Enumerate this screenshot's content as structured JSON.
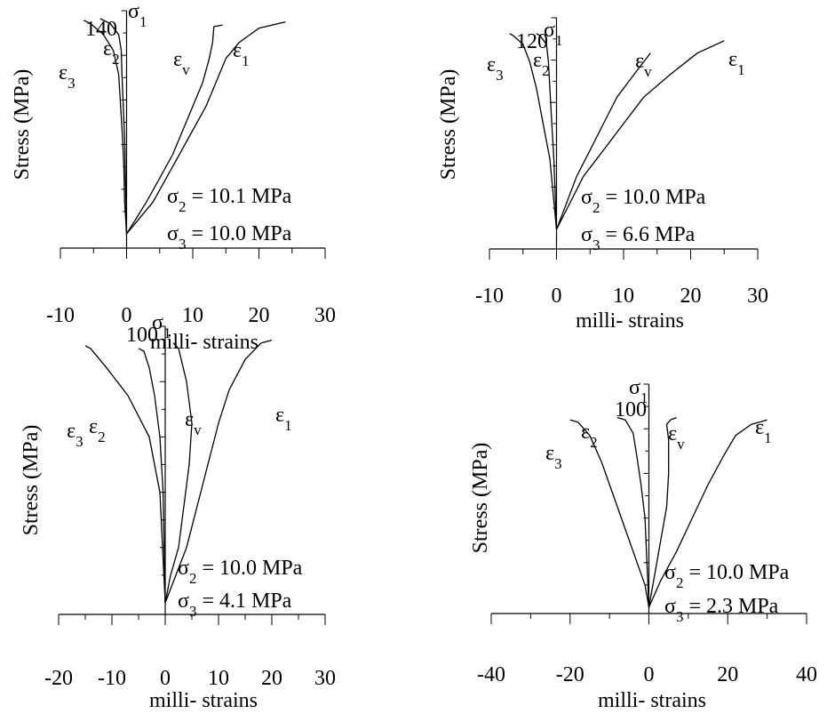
{
  "chart_data": [
    {
      "type": "line",
      "xlabel": "milli- strains",
      "ylabel": "Stress (MPa)",
      "xlim": [
        -10,
        30
      ],
      "ylim": [
        0,
        140
      ],
      "x_ticks": [
        "-10",
        "0",
        "10",
        "20",
        "30"
      ],
      "y_max_label": "140",
      "y_axis_symbol": "σ",
      "y_axis_symbol_sub": "1",
      "params": [
        {
          "symbol": "σ",
          "sub": "2",
          "text": " = 10.1 MPa"
        },
        {
          "symbol": "σ",
          "sub": "3",
          "text": " = 10.0 MPa"
        }
      ],
      "series": [
        {
          "symbol": "ε",
          "sub": "3",
          "points": [
            [
              0,
              0
            ],
            [
              -0.3,
              20
            ],
            [
              -0.4,
              40
            ],
            [
              -0.6,
              60
            ],
            [
              -0.9,
              80
            ],
            [
              -1.2,
              100
            ],
            [
              -2,
              115
            ],
            [
              -3.5,
              125
            ],
            [
              -5.5,
              132
            ],
            [
              -6.5,
              134
            ]
          ]
        },
        {
          "symbol": "ε",
          "sub": "2",
          "points": [
            [
              0,
              0
            ],
            [
              -0.1,
              20
            ],
            [
              -0.2,
              40
            ],
            [
              -0.3,
              60
            ],
            [
              -0.5,
              80
            ],
            [
              -0.7,
              100
            ],
            [
              -0.8,
              115
            ],
            [
              -1.2,
              125
            ],
            [
              -2.5,
              132
            ],
            [
              -4,
              135
            ]
          ]
        },
        {
          "symbol": "ε",
          "sub": "v",
          "points": [
            [
              0,
              0
            ],
            [
              1.5,
              10
            ],
            [
              3,
              20
            ],
            [
              5,
              35
            ],
            [
              7,
              50
            ],
            [
              8.5,
              65
            ],
            [
              10,
              80
            ],
            [
              11.5,
              95
            ],
            [
              12.5,
              110
            ],
            [
              13,
              120
            ],
            [
              13.2,
              130
            ],
            [
              14.5,
              131
            ]
          ]
        },
        {
          "symbol": "ε",
          "sub": "1",
          "points": [
            [
              0,
              0
            ],
            [
              2,
              10
            ],
            [
              4,
              20
            ],
            [
              6,
              35
            ],
            [
              8,
              50
            ],
            [
              10,
              65
            ],
            [
              12,
              80
            ],
            [
              13.5,
              95
            ],
            [
              15,
              110
            ],
            [
              17,
              120
            ],
            [
              20,
              129
            ],
            [
              24,
              133
            ]
          ]
        }
      ]
    },
    {
      "type": "line",
      "xlabel": "milli- strains",
      "ylabel": "Stress (MPa)",
      "xlim": [
        -10,
        30
      ],
      "ylim": [
        0,
        120
      ],
      "x_ticks": [
        "-10",
        "0",
        "10",
        "20",
        "30"
      ],
      "y_max_label": "120",
      "y_axis_symbol": "σ",
      "y_axis_symbol_sub": "1",
      "params": [
        {
          "symbol": "σ",
          "sub": "2",
          "text": " = 10.0 MPa"
        },
        {
          "symbol": "σ",
          "sub": "3",
          "text": " = 6.6   MPa"
        }
      ],
      "series": [
        {
          "symbol": "ε",
          "sub": "3",
          "points": [
            [
              0,
              0
            ],
            [
              -0.5,
              20
            ],
            [
              -1,
              40
            ],
            [
              -2,
              60
            ],
            [
              -3,
              80
            ],
            [
              -4,
              95
            ],
            [
              -5,
              105
            ],
            [
              -6.5,
              110
            ],
            [
              -7,
              111
            ]
          ]
        },
        {
          "symbol": "ε",
          "sub": "2",
          "points": [
            [
              0,
              0
            ],
            [
              -0.2,
              20
            ],
            [
              -0.4,
              40
            ],
            [
              -0.7,
              60
            ],
            [
              -1,
              80
            ],
            [
              -1.2,
              95
            ],
            [
              -1.5,
              105
            ],
            [
              -2.5,
              110
            ],
            [
              -3,
              111
            ]
          ]
        },
        {
          "symbol": "ε",
          "sub": "v",
          "points": [
            [
              0,
              0
            ],
            [
              1.5,
              15
            ],
            [
              3,
              30
            ],
            [
              5,
              45
            ],
            [
              7,
              60
            ],
            [
              9,
              75
            ],
            [
              11,
              85
            ],
            [
              13,
              95
            ],
            [
              14,
              100
            ]
          ]
        },
        {
          "symbol": "ε",
          "sub": "1",
          "points": [
            [
              0,
              0
            ],
            [
              2,
              15
            ],
            [
              4,
              30
            ],
            [
              7,
              45
            ],
            [
              10,
              60
            ],
            [
              13,
              75
            ],
            [
              17,
              88
            ],
            [
              21,
              100
            ],
            [
              25,
              107
            ]
          ]
        }
      ]
    },
    {
      "type": "line",
      "xlabel": "milli- strains",
      "ylabel": "Stress (MPa)",
      "xlim": [
        -20,
        30
      ],
      "ylim": [
        0,
        100
      ],
      "x_ticks": [
        "-20",
        "-10",
        "0",
        "10",
        "20",
        "30"
      ],
      "y_max_label": "100",
      "y_axis_symbol": "σ",
      "y_axis_symbol_sub": "1",
      "params": [
        {
          "symbol": "σ",
          "sub": "2",
          "text": " = 10.0 MPa"
        },
        {
          "symbol": "σ",
          "sub": "3",
          "text": " = 4.1   MPa"
        }
      ],
      "series": [
        {
          "symbol": "ε",
          "sub": "3",
          "points": [
            [
              0,
              0
            ],
            [
              -0.5,
              20
            ],
            [
              -1,
              40
            ],
            [
              -3,
              60
            ],
            [
              -7,
              75
            ],
            [
              -11,
              85
            ],
            [
              -14,
              92
            ],
            [
              -15,
              93
            ]
          ]
        },
        {
          "symbol": "ε",
          "sub": "2",
          "points": [
            [
              0,
              0
            ],
            [
              -0.2,
              20
            ],
            [
              -0.4,
              40
            ],
            [
              -1,
              60
            ],
            [
              -2,
              75
            ],
            [
              -3,
              85
            ],
            [
              -4,
              91
            ],
            [
              -5,
              92
            ]
          ]
        },
        {
          "symbol": "ε",
          "sub": "v",
          "points": [
            [
              0,
              0
            ],
            [
              1,
              10
            ],
            [
              2.5,
              20
            ],
            [
              3.5,
              35
            ],
            [
              4.5,
              50
            ],
            [
              5,
              65
            ],
            [
              4,
              80
            ],
            [
              3,
              88
            ],
            [
              2.5,
              92
            ],
            [
              1.5,
              94
            ]
          ]
        },
        {
          "symbol": "ε",
          "sub": "1",
          "points": [
            [
              0,
              0
            ],
            [
              2,
              10
            ],
            [
              4,
              20
            ],
            [
              6,
              35
            ],
            [
              8,
              50
            ],
            [
              10,
              65
            ],
            [
              12,
              77
            ],
            [
              15,
              88
            ],
            [
              18,
              94
            ],
            [
              20,
              95
            ]
          ]
        }
      ]
    },
    {
      "type": "line",
      "xlabel": "milli- strains",
      "ylabel": "Stress (MPa)",
      "xlim": [
        -40,
        40
      ],
      "ylim": [
        0,
        100
      ],
      "x_ticks": [
        "-40",
        "-20",
        "0",
        "20",
        "40"
      ],
      "y_max_label": "100",
      "y_axis_symbol": "σ",
      "y_axis_symbol_sub": "1",
      "params": [
        {
          "symbol": "σ",
          "sub": "2",
          "text": " = 10.0 MPa"
        },
        {
          "symbol": "σ",
          "sub": "3",
          "text": " = 2.3   MPa"
        }
      ],
      "series": [
        {
          "symbol": "ε",
          "sub": "3",
          "points": [
            [
              0,
              0
            ],
            [
              -1,
              10
            ],
            [
              -3,
              20
            ],
            [
              -6,
              35
            ],
            [
              -9,
              50
            ],
            [
              -12,
              65
            ],
            [
              -15,
              77
            ],
            [
              -18,
              83
            ],
            [
              -20,
              84
            ]
          ]
        },
        {
          "symbol": "ε",
          "sub": "2",
          "points": [
            [
              0,
              0
            ],
            [
              -0.5,
              20
            ],
            [
              -1,
              40
            ],
            [
              -2,
              55
            ],
            [
              -3,
              67
            ],
            [
              -4,
              78
            ],
            [
              -6,
              84
            ],
            [
              -8,
              85
            ]
          ]
        },
        {
          "symbol": "ε",
          "sub": "v",
          "points": [
            [
              0,
              0
            ],
            [
              1.5,
              15
            ],
            [
              3,
              30
            ],
            [
              4.5,
              45
            ],
            [
              5,
              60
            ],
            [
              5,
              75
            ],
            [
              4.5,
              82
            ],
            [
              5.5,
              84
            ],
            [
              7,
              85
            ]
          ]
        },
        {
          "symbol": "ε",
          "sub": "1",
          "points": [
            [
              0,
              0
            ],
            [
              3,
              12
            ],
            [
              7,
              25
            ],
            [
              11,
              40
            ],
            [
              15,
              55
            ],
            [
              19,
              68
            ],
            [
              22,
              77
            ],
            [
              26,
              82
            ],
            [
              30,
              84
            ]
          ]
        }
      ]
    }
  ]
}
